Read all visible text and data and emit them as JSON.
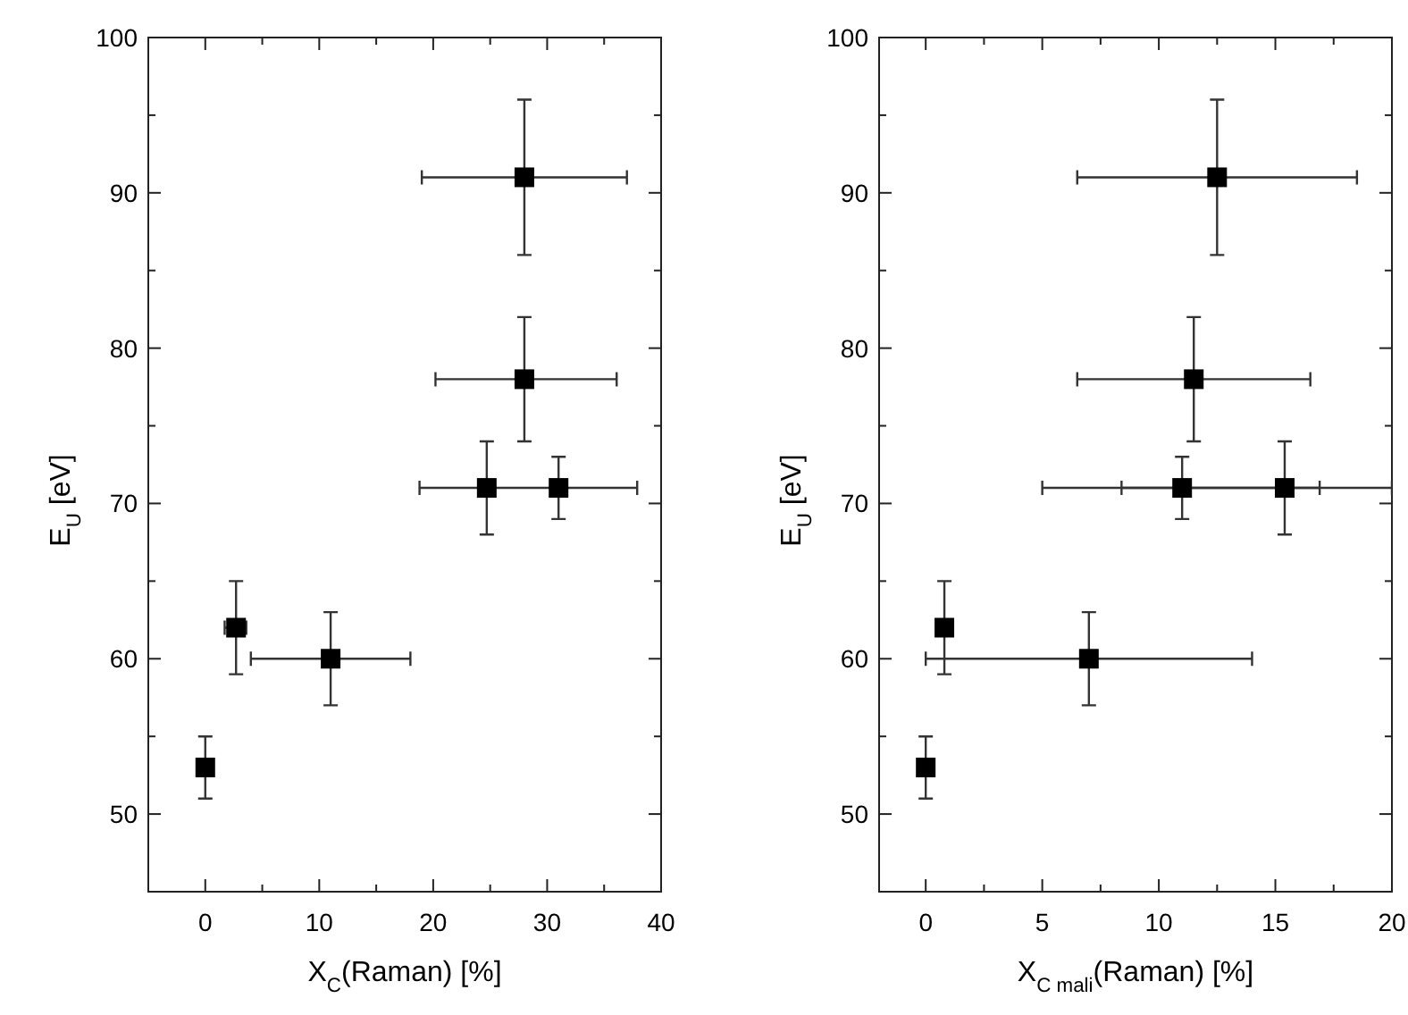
{
  "chart_data": [
    {
      "type": "scatter",
      "xlabel": "X$_{C}$(Raman) [%]",
      "ylabel": "E$_{U}$ [eV]",
      "marker": "square",
      "grid": false,
      "xlim": [
        -5,
        40
      ],
      "xticks": [
        0,
        10,
        20,
        30,
        40,
        {
          "value": 5,
          "label": null
        },
        {
          "value": 15,
          "label": null
        },
        {
          "value": 25,
          "label": null
        },
        {
          "value": 35,
          "label": null
        }
      ],
      "ylim": [
        45,
        100
      ],
      "yticks": [
        50,
        60,
        70,
        80,
        90,
        100,
        {
          "value": 55,
          "label": null
        },
        {
          "value": 65,
          "label": null
        },
        {
          "value": 75,
          "label": null
        },
        {
          "value": 85,
          "label": null
        },
        {
          "value": 95,
          "label": null
        }
      ],
      "series": [
        {
          "color": "#000000",
          "x": [
            0,
            2.7,
            11,
            24.7,
            31,
            28,
            28
          ],
          "values": [
            53,
            62,
            60,
            71,
            71,
            78,
            91
          ],
          "errors": [
            [
              51,
              55
            ],
            [
              59,
              65
            ],
            [
              57,
              63
            ],
            [
              68,
              74
            ],
            [
              69,
              73
            ],
            [
              74,
              82
            ],
            [
              86,
              96
            ]
          ],
          "xerrors": [
            null,
            [
              1.7,
              3.6
            ],
            [
              4,
              18
            ],
            [
              18.8,
              37.9
            ],
            null,
            [
              20.2,
              36.1
            ],
            [
              19,
              37
            ]
          ]
        }
      ]
    },
    {
      "type": "scatter",
      "xlabel": "X$_{C mali}$(Raman) [%]",
      "ylabel": "E$_{U}$ [eV]",
      "marker": "square",
      "grid": false,
      "xlim": [
        -2,
        20
      ],
      "xticks": [
        0,
        5,
        10,
        15,
        20,
        {
          "value": 2.5,
          "label": null
        },
        {
          "value": 7.5,
          "label": null
        },
        {
          "value": 12.5,
          "label": null
        },
        {
          "value": 17.5,
          "label": null
        }
      ],
      "ylim": [
        45,
        100
      ],
      "yticks": [
        50,
        60,
        70,
        80,
        90,
        100,
        {
          "value": 55,
          "label": null
        },
        {
          "value": 65,
          "label": null
        },
        {
          "value": 75,
          "label": null
        },
        {
          "value": 85,
          "label": null
        },
        {
          "value": 95,
          "label": null
        }
      ],
      "series": [
        {
          "color": "#000000",
          "x": [
            0,
            0.8,
            7,
            11,
            15.4,
            11.5,
            12.5
          ],
          "values": [
            53,
            62,
            60,
            71,
            71,
            78,
            91
          ],
          "errors": [
            [
              51,
              55
            ],
            [
              59,
              65
            ],
            [
              57,
              63
            ],
            [
              69,
              73
            ],
            [
              68,
              74
            ],
            [
              74,
              82
            ],
            [
              86,
              96
            ]
          ],
          "xerrors": [
            null,
            null,
            [
              0,
              14
            ],
            [
              8.4,
              16.9
            ],
            [
              5,
              20
            ],
            [
              6.5,
              16.5
            ],
            [
              6.5,
              18.5
            ]
          ]
        }
      ]
    }
  ]
}
